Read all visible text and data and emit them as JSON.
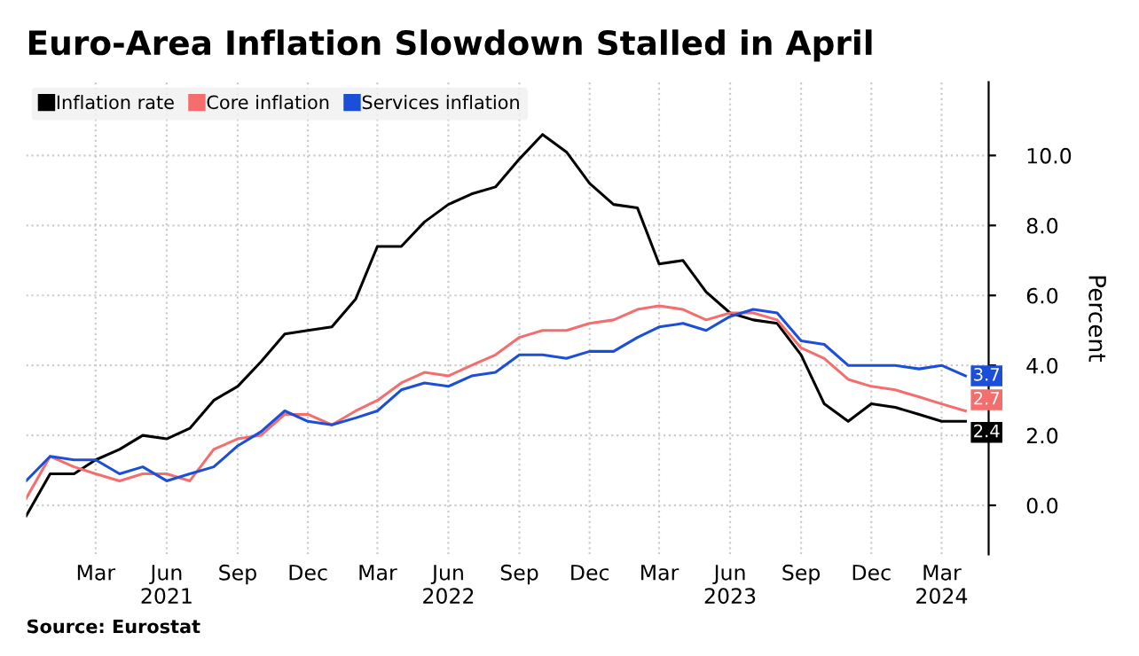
{
  "chart_data": {
    "type": "line",
    "title": "Euro-Area Inflation Slowdown Stalled in April",
    "ylabel": "Percent",
    "x": [
      "2020-12",
      "2021-01",
      "2021-02",
      "2021-03",
      "2021-04",
      "2021-05",
      "2021-06",
      "2021-07",
      "2021-08",
      "2021-09",
      "2021-10",
      "2021-11",
      "2021-12",
      "2022-01",
      "2022-02",
      "2022-03",
      "2022-04",
      "2022-05",
      "2022-06",
      "2022-07",
      "2022-08",
      "2022-09",
      "2022-10",
      "2022-11",
      "2022-12",
      "2023-01",
      "2023-02",
      "2023-03",
      "2023-04",
      "2023-05",
      "2023-06",
      "2023-07",
      "2023-08",
      "2023-09",
      "2023-10",
      "2023-11",
      "2023-12",
      "2024-01",
      "2024-02",
      "2024-03",
      "2024-04"
    ],
    "series": [
      {
        "name": "Inflation rate",
        "color": "#000000",
        "values": [
          -0.3,
          0.9,
          0.9,
          1.3,
          1.6,
          2.0,
          1.9,
          2.2,
          3.0,
          3.4,
          4.1,
          4.9,
          5.0,
          5.1,
          5.9,
          7.4,
          7.4,
          8.1,
          8.6,
          8.9,
          9.1,
          9.9,
          10.6,
          10.1,
          9.2,
          8.6,
          8.5,
          6.9,
          7.0,
          6.1,
          5.5,
          5.3,
          5.2,
          4.3,
          2.9,
          2.4,
          2.9,
          2.8,
          2.6,
          2.4,
          2.4
        ],
        "value_labels": [
          null,
          null,
          null,
          null,
          null,
          null,
          null,
          null,
          null,
          null,
          null,
          null,
          null,
          null,
          null,
          null,
          null,
          null,
          null,
          null,
          null,
          null,
          null,
          null,
          null,
          null,
          null,
          null,
          null,
          null,
          null,
          null,
          null,
          null,
          null,
          null,
          null,
          null,
          null,
          null,
          "2.4"
        ]
      },
      {
        "name": "Core inflation",
        "color": "#f46e6e",
        "values": [
          0.2,
          1.4,
          1.1,
          0.9,
          0.7,
          0.9,
          0.9,
          0.7,
          1.6,
          1.9,
          2.0,
          2.6,
          2.6,
          2.3,
          2.7,
          3.0,
          3.5,
          3.8,
          3.7,
          4.0,
          4.3,
          4.8,
          5.0,
          5.0,
          5.2,
          5.3,
          5.6,
          5.7,
          5.6,
          5.3,
          5.5,
          5.5,
          5.3,
          4.5,
          4.2,
          3.6,
          3.4,
          3.3,
          3.1,
          2.9,
          2.7
        ],
        "value_labels": [
          null,
          null,
          null,
          null,
          null,
          null,
          null,
          null,
          null,
          null,
          null,
          null,
          null,
          null,
          null,
          null,
          null,
          null,
          null,
          null,
          null,
          null,
          null,
          null,
          null,
          null,
          null,
          null,
          null,
          null,
          null,
          null,
          null,
          null,
          null,
          null,
          null,
          null,
          null,
          null,
          "2.7"
        ]
      },
      {
        "name": "Services inflation",
        "color": "#1c4fd9",
        "values": [
          0.7,
          1.4,
          1.3,
          1.3,
          0.9,
          1.1,
          0.7,
          0.9,
          1.1,
          1.7,
          2.1,
          2.7,
          2.4,
          2.3,
          2.5,
          2.7,
          3.3,
          3.5,
          3.4,
          3.7,
          3.8,
          4.3,
          4.3,
          4.2,
          4.4,
          4.4,
          4.8,
          5.1,
          5.2,
          5.0,
          5.4,
          5.6,
          5.5,
          4.7,
          4.6,
          4.0,
          4.0,
          4.0,
          3.9,
          4.0,
          3.7
        ],
        "value_labels": [
          null,
          null,
          null,
          null,
          null,
          null,
          null,
          null,
          null,
          null,
          null,
          null,
          null,
          null,
          null,
          null,
          null,
          null,
          null,
          null,
          null,
          null,
          null,
          null,
          null,
          null,
          null,
          null,
          null,
          null,
          null,
          null,
          null,
          null,
          null,
          null,
          null,
          null,
          null,
          null,
          "3.7"
        ]
      }
    ],
    "xlim": [
      "2020-12",
      "2024-05"
    ],
    "xticks": [
      {
        "value": "2021-03",
        "label": "Mar"
      },
      {
        "value": "2021-06",
        "label": "Jun\n2021"
      },
      {
        "value": "2021-09",
        "label": "Sep"
      },
      {
        "value": "2021-12",
        "label": "Dec"
      },
      {
        "value": "2022-03",
        "label": "Mar"
      },
      {
        "value": "2022-06",
        "label": "Jun\n2022"
      },
      {
        "value": "2022-09",
        "label": "Sep"
      },
      {
        "value": "2022-12",
        "label": "Dec"
      },
      {
        "value": "2023-03",
        "label": "Mar"
      },
      {
        "value": "2023-06",
        "label": "Jun\n2023"
      },
      {
        "value": "2023-09",
        "label": "Sep"
      },
      {
        "value": "2023-12",
        "label": "Dec"
      },
      {
        "value": "2024-03",
        "label": "Mar\n2024"
      }
    ],
    "ylim": [
      -1.4,
      12.1
    ],
    "yticks": [
      {
        "value": 0,
        "label": "0.0"
      },
      {
        "value": 2,
        "label": "2.0"
      },
      {
        "value": 4,
        "label": "4.0"
      },
      {
        "value": 6,
        "label": "6.0"
      },
      {
        "value": 8,
        "label": "8.0"
      },
      {
        "value": 10,
        "label": "10.0"
      }
    ],
    "grid": true,
    "legend": "top left",
    "marker": "none",
    "line_style": "solid",
    "annotations": [
      "Source: Eurostat"
    ]
  }
}
